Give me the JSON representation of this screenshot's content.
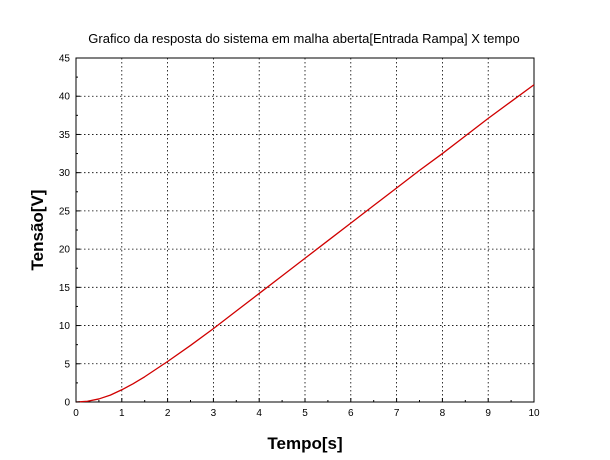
{
  "chart_data": {
    "type": "line",
    "title": "Grafico da resposta do sistema em malha aberta[Entrada Rampa] X tempo",
    "xlabel": "Tempo[s]",
    "ylabel": "Tensão[V]",
    "xlim": [
      0,
      10
    ],
    "ylim": [
      0,
      45
    ],
    "xticks": [
      "0",
      "1",
      "2",
      "3",
      "4",
      "5",
      "6",
      "7",
      "8",
      "9",
      "10"
    ],
    "yticks": [
      "0",
      "5",
      "10",
      "15",
      "20",
      "25",
      "30",
      "35",
      "40",
      "45"
    ],
    "grid": true,
    "legend": "none",
    "series": [
      {
        "color": "#d00000",
        "x": [
          0,
          0.25,
          0.5,
          0.75,
          1,
          1.25,
          1.5,
          1.75,
          2,
          2.5,
          3,
          3.5,
          4,
          4.5,
          5,
          5.5,
          6,
          6.5,
          7,
          7.5,
          8,
          8.5,
          9,
          9.5,
          10
        ],
        "y": [
          0,
          0.1,
          0.4,
          0.9,
          1.6,
          2.4,
          3.3,
          4.3,
          5.3,
          7.4,
          9.6,
          11.9,
          14.2,
          16.5,
          18.8,
          21.1,
          23.4,
          25.7,
          28.0,
          30.3,
          32.5,
          34.8,
          37.1,
          39.3,
          41.5
        ]
      }
    ]
  }
}
